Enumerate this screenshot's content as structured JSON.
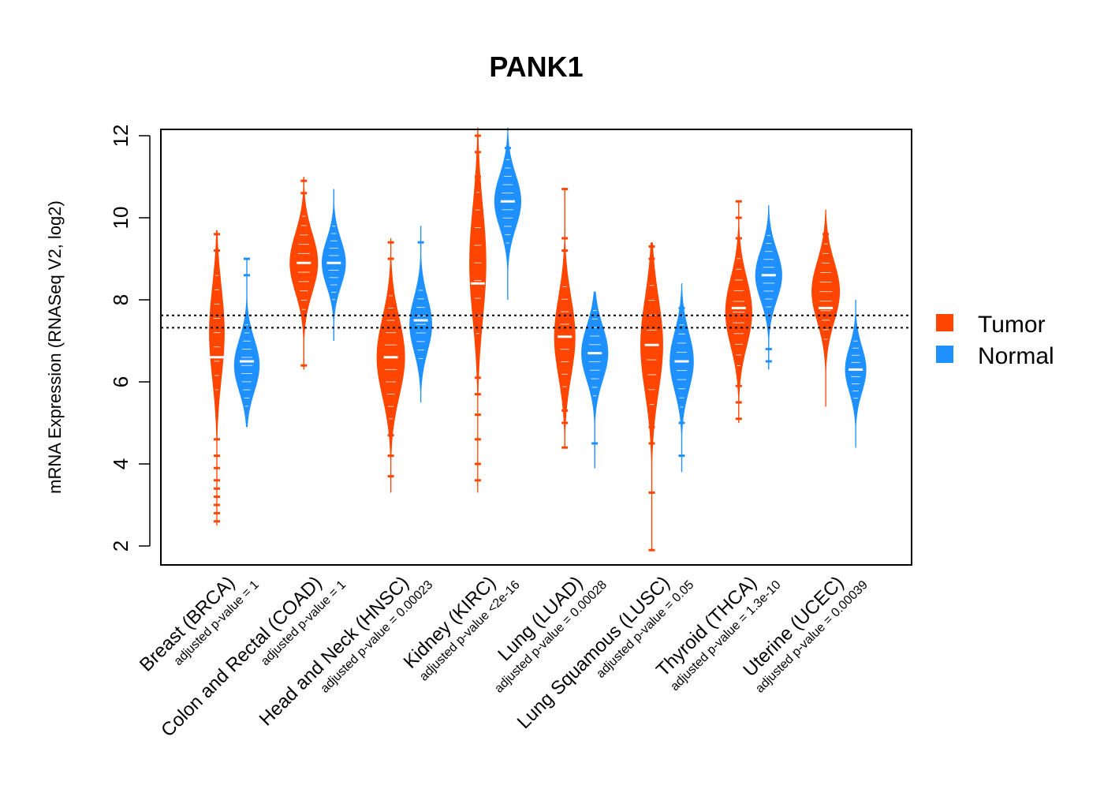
{
  "chart_data": {
    "type": "violin",
    "title": "PANK1",
    "ylabel": "mRNA Expression (RNASeq V2, log2)",
    "xlabel": "",
    "ylim": [
      1.6,
      12.2
    ],
    "yticks": [
      2,
      4,
      6,
      8,
      10,
      12
    ],
    "ytick_labels": [
      "2",
      "4",
      "6",
      "8",
      "10",
      "12"
    ],
    "reference_lines": [
      7.62,
      7.32
    ],
    "legend": [
      {
        "name": "Tumor",
        "color": "#FF4500"
      },
      {
        "name": "Normal",
        "color": "#1E90FF"
      }
    ],
    "categories": [
      {
        "label": "Breast (BRCA)",
        "pvalue": "adjusted p-value = 1",
        "tumor": {
          "min": 2.5,
          "max": 9.7,
          "median": 6.6,
          "peak": 7.2,
          "width": 0.55,
          "outliers": [
            2.6,
            2.8,
            3.0,
            3.2,
            3.4,
            3.6,
            3.9,
            4.2,
            4.6,
            9.2,
            9.6
          ]
        },
        "normal": {
          "min": 4.9,
          "max": 9.0,
          "median": 6.5,
          "peak": 6.4,
          "width": 0.9,
          "outliers": [
            8.6,
            9.0
          ]
        }
      },
      {
        "label": "Colon and Rectal (COAD)",
        "pvalue": "adjusted p-value = 1",
        "tumor": {
          "min": 6.3,
          "max": 11.0,
          "median": 8.9,
          "peak": 8.9,
          "width": 1.0,
          "outliers": [
            6.4,
            10.6,
            10.9
          ]
        },
        "normal": {
          "min": 7.0,
          "max": 10.7,
          "median": 8.9,
          "peak": 8.9,
          "width": 0.85,
          "outliers": []
        }
      },
      {
        "label": "Head and Neck (HNSC)",
        "pvalue": "adjusted p-value = 0.00023",
        "tumor": {
          "min": 3.3,
          "max": 9.5,
          "median": 6.6,
          "peak": 6.6,
          "width": 1.0,
          "outliers": [
            3.7,
            4.2,
            4.7,
            5.0,
            9.0,
            9.4
          ]
        },
        "normal": {
          "min": 5.5,
          "max": 9.8,
          "median": 7.5,
          "peak": 7.4,
          "width": 0.8,
          "outliers": [
            9.4
          ]
        }
      },
      {
        "label": "Kidney (KIRC)",
        "pvalue": "adjusted p-value <2e-16",
        "tumor": {
          "min": 3.3,
          "max": 12.2,
          "median": 8.4,
          "peak": 8.9,
          "width": 0.6,
          "outliers": [
            3.6,
            4.0,
            4.6,
            5.2,
            5.7,
            6.1,
            10.2,
            10.6,
            11.0,
            11.6,
            12.0
          ]
        },
        "normal": {
          "min": 8.0,
          "max": 12.2,
          "median": 10.4,
          "peak": 10.4,
          "width": 0.95,
          "outliers": [
            11.7
          ]
        }
      },
      {
        "label": "Lung (LUAD)",
        "pvalue": "adjusted p-value = 0.00028",
        "tumor": {
          "min": 4.4,
          "max": 10.7,
          "median": 7.1,
          "peak": 7.1,
          "width": 0.75,
          "outliers": [
            4.4,
            5.0,
            5.3,
            9.2,
            9.5,
            10.7
          ]
        },
        "normal": {
          "min": 3.9,
          "max": 8.2,
          "median": 6.7,
          "peak": 6.7,
          "width": 0.95,
          "outliers": [
            4.5
          ]
        }
      },
      {
        "label": "Lung Squamous (LUSC)",
        "pvalue": "adjusted p-value = 0.05",
        "tumor": {
          "min": 1.9,
          "max": 9.4,
          "median": 6.9,
          "peak": 6.9,
          "width": 0.8,
          "outliers": [
            1.9,
            3.3,
            4.5,
            4.9,
            5.3,
            8.6,
            9.0,
            9.3
          ]
        },
        "normal": {
          "min": 3.8,
          "max": 8.4,
          "median": 6.5,
          "peak": 6.5,
          "width": 0.85,
          "outliers": [
            4.2,
            5.0,
            7.8
          ]
        }
      },
      {
        "label": "Thyroid (THCA)",
        "pvalue": "adjusted p-value = 1.3e-10",
        "tumor": {
          "min": 5.0,
          "max": 10.4,
          "median": 7.8,
          "peak": 7.7,
          "width": 0.95,
          "outliers": [
            5.1,
            5.5,
            5.9,
            9.5,
            10.0,
            10.4
          ]
        },
        "normal": {
          "min": 6.3,
          "max": 10.3,
          "median": 8.6,
          "peak": 8.6,
          "width": 0.95,
          "outliers": [
            6.5,
            6.8
          ]
        }
      },
      {
        "label": "Uterine (UCEC)",
        "pvalue": "adjusted p-value = 0.00039",
        "tumor": {
          "min": 5.4,
          "max": 10.2,
          "median": 7.8,
          "peak": 8.2,
          "width": 1.0,
          "outliers": [
            9.6
          ]
        },
        "normal": {
          "min": 4.4,
          "max": 8.0,
          "median": 6.3,
          "peak": 6.3,
          "width": 0.75,
          "outliers": []
        }
      }
    ]
  }
}
